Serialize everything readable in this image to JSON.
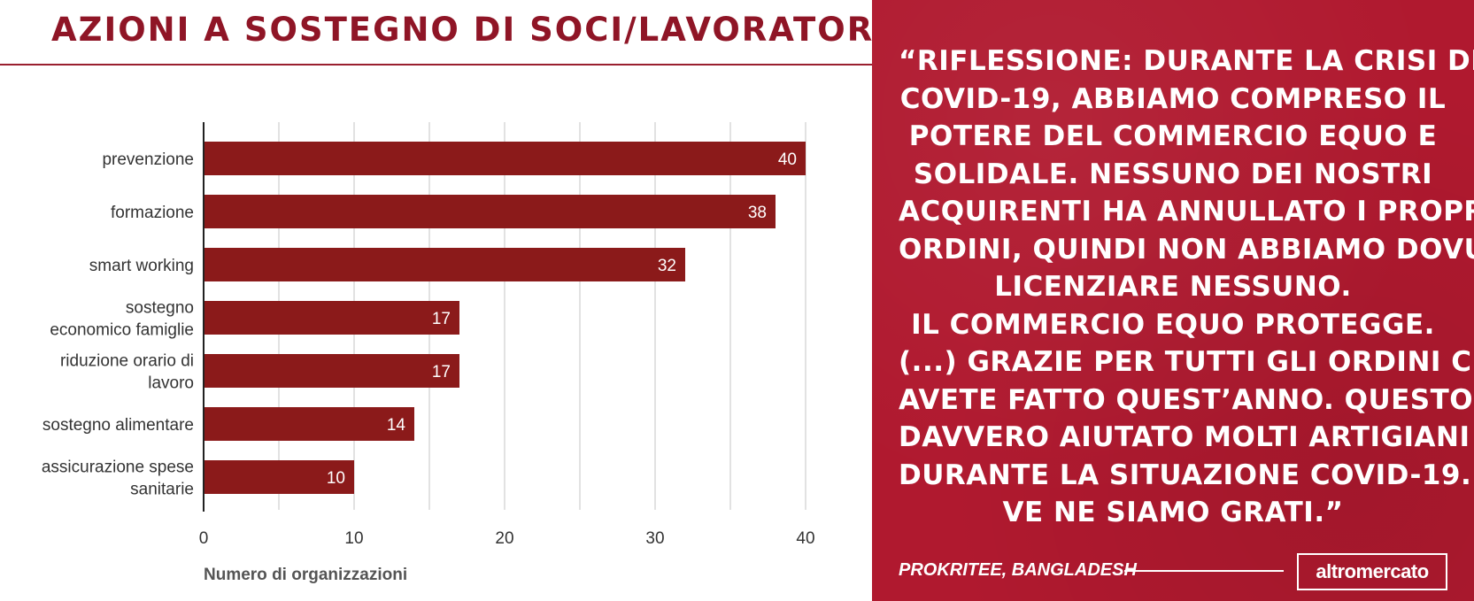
{
  "title": "AZIONI A SOSTEGNO DI SOCI/LAVORATORI",
  "colors": {
    "bar": "#8b1a1a",
    "accent": "#b0192f",
    "grid": "#d9d9d9"
  },
  "chart_data": {
    "type": "bar",
    "orientation": "horizontal",
    "title": "AZIONI A SOSTEGNO DI SOCI/LAVORATORI",
    "categories": [
      [
        "prevenzione"
      ],
      [
        "formazione"
      ],
      [
        "smart working"
      ],
      [
        "sostegno",
        "economico famiglie"
      ],
      [
        "riduzione orario di",
        "lavoro"
      ],
      [
        "sostegno alimentare"
      ],
      [
        "assicurazione spese",
        "sanitarie"
      ]
    ],
    "values": [
      40,
      38,
      32,
      17,
      17,
      14,
      10
    ],
    "xlabel": "Numero di organizzazioni",
    "ylabel": "",
    "xlim": [
      0,
      43
    ],
    "xticks": [
      0,
      10,
      20,
      30,
      40
    ],
    "grid": true,
    "data_labels": true
  },
  "quote": {
    "lines": [
      "“RIFLESSIONE: DURANTE LA CRISI DEL",
      "COVID-19, ABBIAMO COMPRESO IL",
      "POTERE DEL COMMERCIO EQUO E",
      "SOLIDALE. NESSUNO DEI NOSTRI",
      "ACQUIRENTI HA ANNULLATO I PROPRI",
      "ORDINI, QUINDI NON ABBIAMO DOVUTO",
      "LICENZIARE NESSUNO.",
      "IL COMMERCIO EQUO PROTEGGE.",
      "(...) GRAZIE PER TUTTI GLI ORDINI CHE",
      "AVETE FATTO QUEST’ANNO. QUESTO HA",
      "DAVVERO AIUTATO MOLTI ARTIGIANI",
      "DURANTE LA SITUAZIONE COVID-19.",
      "VE NE SIAMO GRATI.”"
    ],
    "attribution": "PROKRITEE, BANGLADESH"
  },
  "logo": {
    "text": "altromercato"
  }
}
